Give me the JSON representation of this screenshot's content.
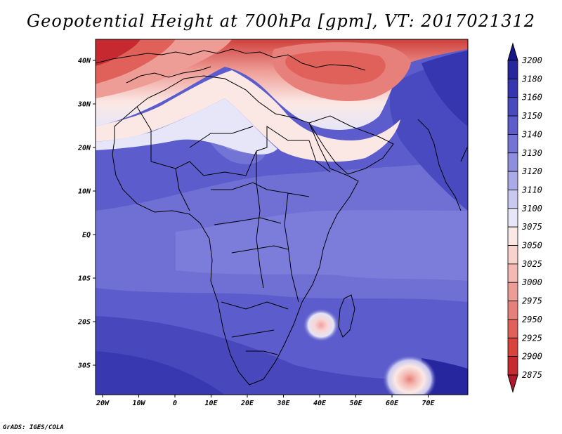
{
  "title": "Geopotential Height at 700hPa [gpm], VT: 2017021312",
  "credit": "GrADS: IGES/COLA",
  "map": {
    "lon_ticks": [
      "20W",
      "10W",
      "0",
      "10E",
      "20E",
      "30E",
      "40E",
      "50E",
      "60E",
      "70E"
    ],
    "lat_ticks": [
      "40N",
      "30N",
      "20N",
      "10N",
      "EQ",
      "10S",
      "20S",
      "30S"
    ]
  },
  "colorbar": {
    "levels": [
      "2875",
      "2900",
      "2925",
      "2950",
      "2975",
      "3000",
      "3025",
      "3050",
      "3075",
      "3100",
      "3110",
      "3120",
      "3130",
      "3140",
      "3150",
      "3160",
      "3180",
      "3200"
    ],
    "colors": [
      "#b2182b",
      "#c62a30",
      "#d8443c",
      "#e0615a",
      "#e7807a",
      "#ee9d96",
      "#f4b9b2",
      "#f8d2cd",
      "#fbe8e5",
      "#e6e6f8",
      "#c8c8f0",
      "#aaaae8",
      "#8e8ee0",
      "#7474d6",
      "#5c5ccc",
      "#4a4ac0",
      "#3636b0",
      "#26269e",
      "#18188a"
    ]
  },
  "field_colors": {
    "low": "#c62a30",
    "mid_low": "#ee9d96",
    "transition": "#fbe8e5",
    "high": "#5c5ccc",
    "highest": "#26269e"
  }
}
